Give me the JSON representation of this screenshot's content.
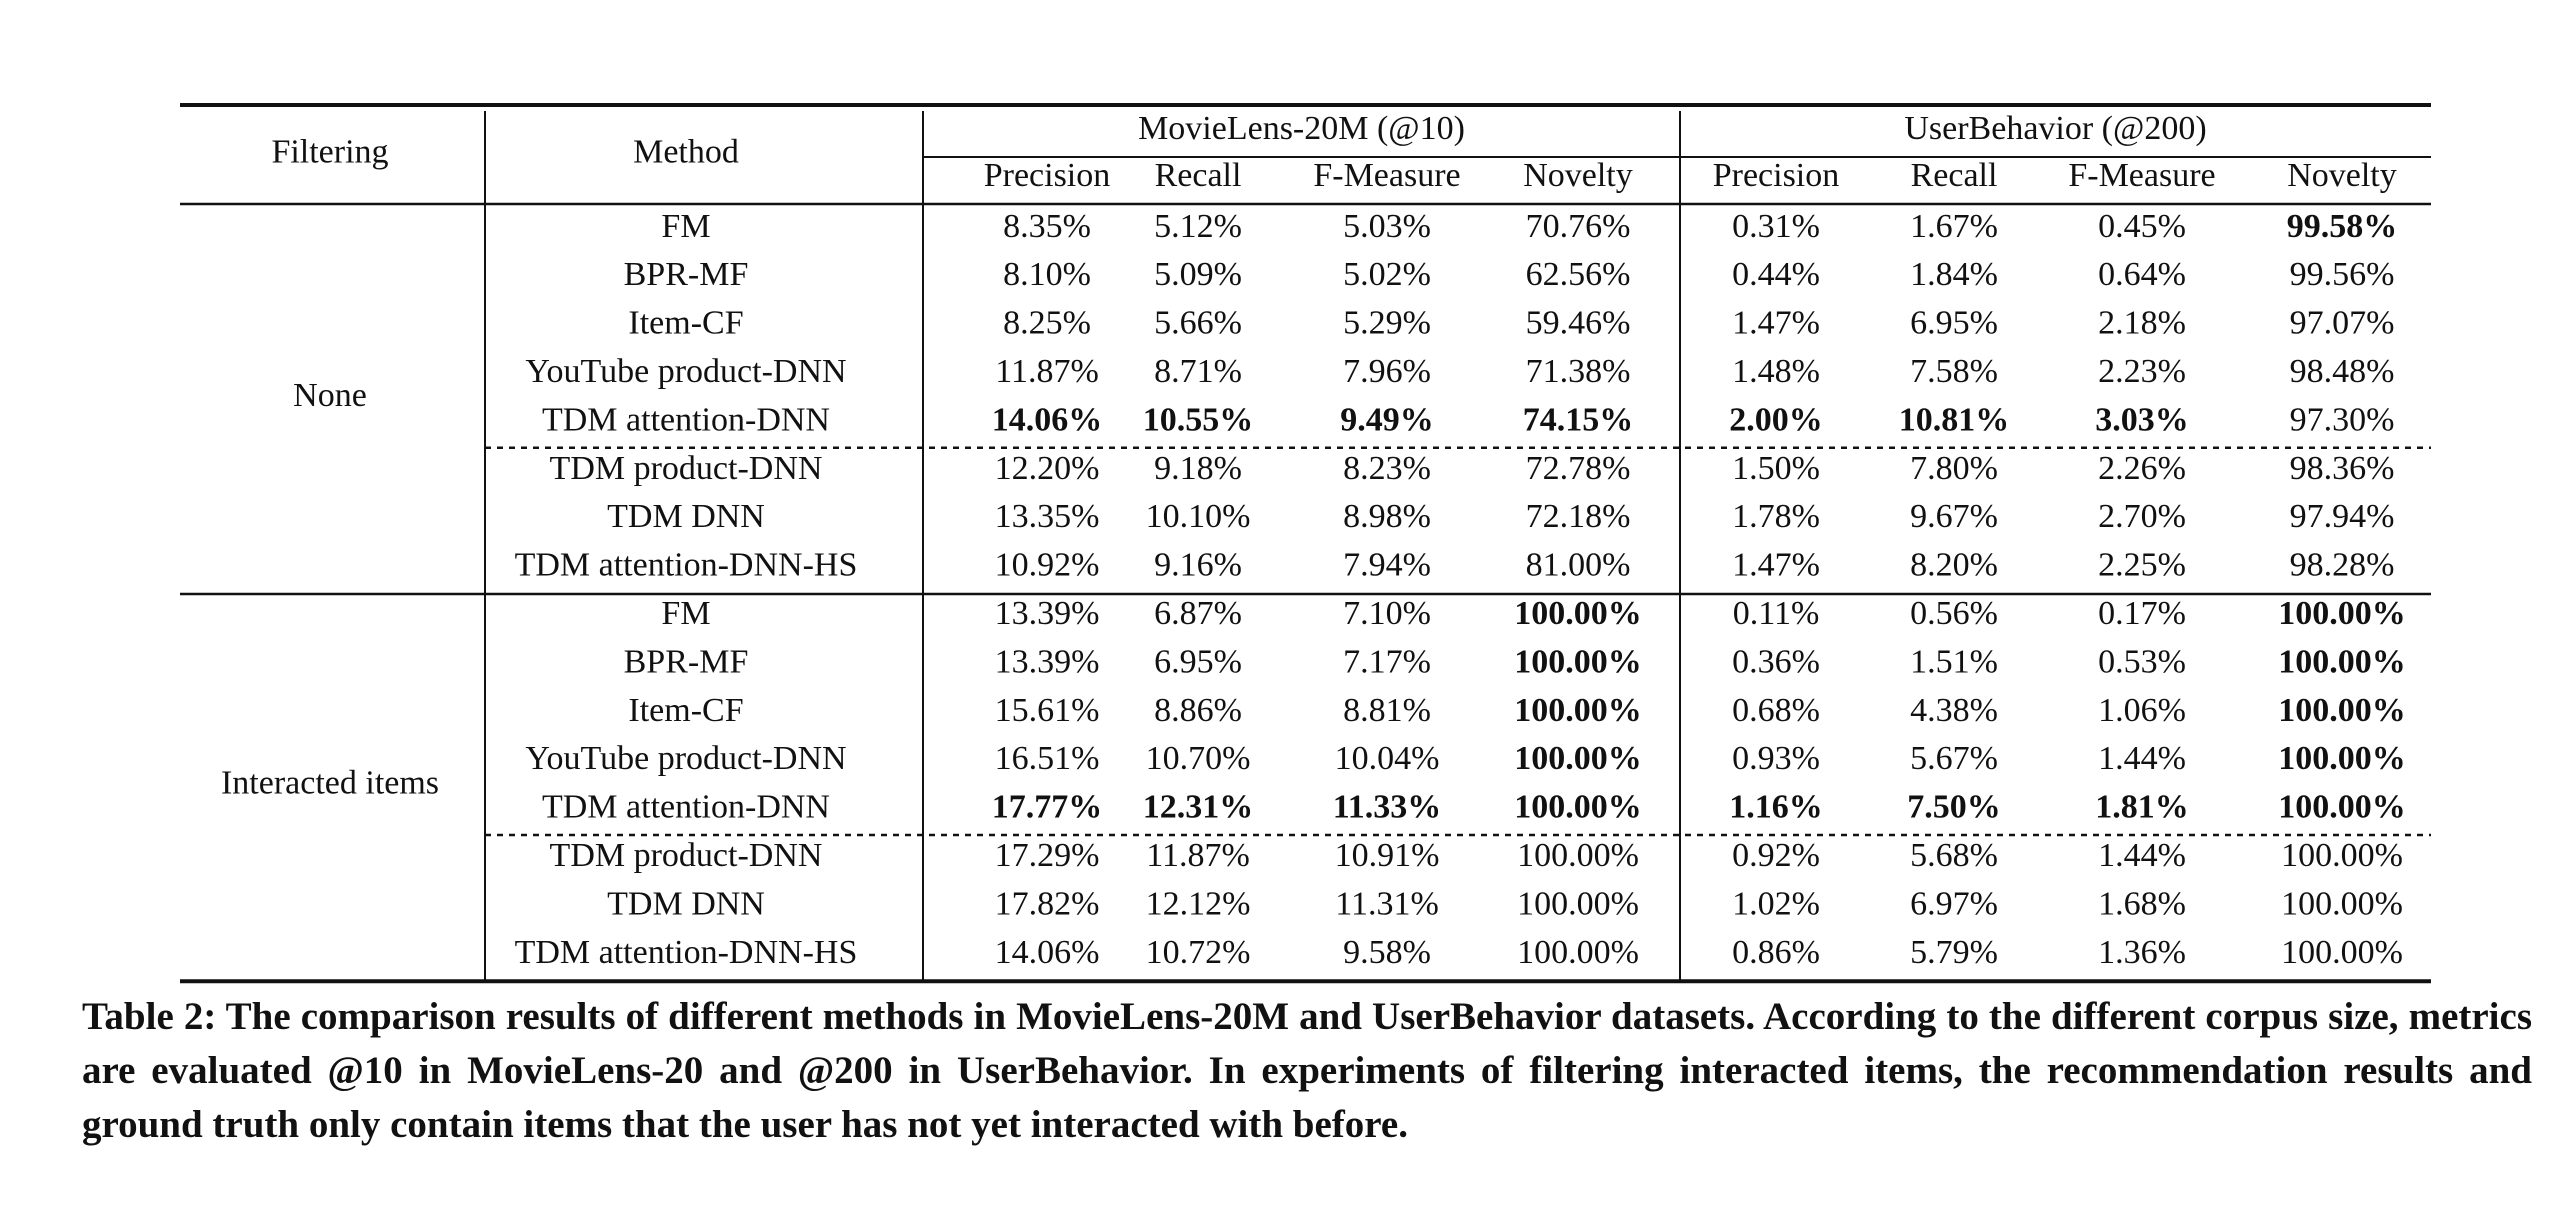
{
  "table": {
    "header": {
      "filtering": "Filtering",
      "method": "Method",
      "groups": [
        "MovieLens-20M (@10)",
        "UserBehavior (@200)"
      ],
      "metrics": [
        "Precision",
        "Recall",
        "F-Measure",
        "Novelty",
        "Precision",
        "Recall",
        "F-Measure",
        "Novelty"
      ]
    },
    "sections": [
      {
        "filter": "None",
        "blocks": [
          [
            {
              "method": "FM",
              "cells": [
                "8.35%",
                "5.12%",
                "5.03%",
                "70.76%",
                "0.31%",
                "1.67%",
                "0.45%",
                "99.58%"
              ],
              "bold": [
                false,
                false,
                false,
                false,
                false,
                false,
                false,
                true
              ]
            },
            {
              "method": "BPR-MF",
              "cells": [
                "8.10%",
                "5.09%",
                "5.02%",
                "62.56%",
                "0.44%",
                "1.84%",
                "0.64%",
                "99.56%"
              ]
            },
            {
              "method": "Item-CF",
              "cells": [
                "8.25%",
                "5.66%",
                "5.29%",
                "59.46%",
                "1.47%",
                "6.95%",
                "2.18%",
                "97.07%"
              ]
            },
            {
              "method": "YouTube product-DNN",
              "cells": [
                "11.87%",
                "8.71%",
                "7.96%",
                "71.38%",
                "1.48%",
                "7.58%",
                "2.23%",
                "98.48%"
              ]
            },
            {
              "method": "TDM attention-DNN",
              "cells": [
                "14.06%",
                "10.55%",
                "9.49%",
                "74.15%",
                "2.00%",
                "10.81%",
                "3.03%",
                "97.30%"
              ],
              "bold": [
                true,
                true,
                true,
                true,
                true,
                true,
                true,
                false
              ]
            }
          ],
          [
            {
              "method": "TDM product-DNN",
              "cells": [
                "12.20%",
                "9.18%",
                "8.23%",
                "72.78%",
                "1.50%",
                "7.80%",
                "2.26%",
                "98.36%"
              ]
            },
            {
              "method": "TDM DNN",
              "cells": [
                "13.35%",
                "10.10%",
                "8.98%",
                "72.18%",
                "1.78%",
                "9.67%",
                "2.70%",
                "97.94%"
              ]
            },
            {
              "method": "TDM attention-DNN-HS",
              "cells": [
                "10.92%",
                "9.16%",
                "7.94%",
                "81.00%",
                "1.47%",
                "8.20%",
                "2.25%",
                "98.28%"
              ]
            }
          ]
        ]
      },
      {
        "filter": "Interacted items",
        "blocks": [
          [
            {
              "method": "FM",
              "cells": [
                "13.39%",
                "6.87%",
                "7.10%",
                "100.00%",
                "0.11%",
                "0.56%",
                "0.17%",
                "100.00%"
              ],
              "bold": [
                false,
                false,
                false,
                true,
                false,
                false,
                false,
                true
              ]
            },
            {
              "method": "BPR-MF",
              "cells": [
                "13.39%",
                "6.95%",
                "7.17%",
                "100.00%",
                "0.36%",
                "1.51%",
                "0.53%",
                "100.00%"
              ],
              "bold": [
                false,
                false,
                false,
                true,
                false,
                false,
                false,
                true
              ]
            },
            {
              "method": "Item-CF",
              "cells": [
                "15.61%",
                "8.86%",
                "8.81%",
                "100.00%",
                "0.68%",
                "4.38%",
                "1.06%",
                "100.00%"
              ],
              "bold": [
                false,
                false,
                false,
                true,
                false,
                false,
                false,
                true
              ]
            },
            {
              "method": "YouTube product-DNN",
              "cells": [
                "16.51%",
                "10.70%",
                "10.04%",
                "100.00%",
                "0.93%",
                "5.67%",
                "1.44%",
                "100.00%"
              ],
              "bold": [
                false,
                false,
                false,
                true,
                false,
                false,
                false,
                true
              ]
            },
            {
              "method": "TDM attention-DNN",
              "cells": [
                "17.77%",
                "12.31%",
                "11.33%",
                "100.00%",
                "1.16%",
                "7.50%",
                "1.81%",
                "100.00%"
              ],
              "bold": [
                true,
                true,
                true,
                true,
                true,
                true,
                true,
                true
              ]
            }
          ],
          [
            {
              "method": "TDM product-DNN",
              "cells": [
                "17.29%",
                "11.87%",
                "10.91%",
                "100.00%",
                "0.92%",
                "5.68%",
                "1.44%",
                "100.00%"
              ]
            },
            {
              "method": "TDM DNN",
              "cells": [
                "17.82%",
                "12.12%",
                "11.31%",
                "100.00%",
                "1.02%",
                "6.97%",
                "1.68%",
                "100.00%"
              ]
            },
            {
              "method": "TDM attention-DNN-HS",
              "cells": [
                "14.06%",
                "10.72%",
                "9.58%",
                "100.00%",
                "0.86%",
                "5.79%",
                "1.36%",
                "100.00%"
              ]
            }
          ]
        ]
      }
    ]
  },
  "caption": "Table 2: The comparison results of different methods in MovieLens-20M and UserBehavior datasets. According to the different corpus size, metrics are evaluated @10 in MovieLens-20 and @200 in UserBehavior. In experiments of filtering interacted items, the recommendation results and ground truth only contain items that the user has not yet interacted with before."
}
